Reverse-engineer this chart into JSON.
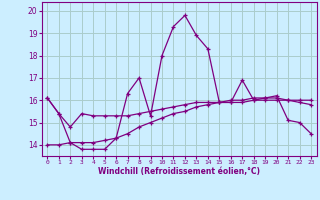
{
  "xlabel": "Windchill (Refroidissement éolien,°C)",
  "x": [
    0,
    1,
    2,
    3,
    4,
    5,
    6,
    7,
    8,
    9,
    10,
    11,
    12,
    13,
    14,
    15,
    16,
    17,
    18,
    19,
    20,
    21,
    22,
    23
  ],
  "line_upper": [
    16.1,
    15.4,
    14.1,
    13.8,
    13.8,
    13.8,
    14.3,
    16.3,
    17.0,
    15.3,
    18.0,
    19.3,
    19.8,
    18.9,
    18.3,
    15.9,
    15.9,
    16.9,
    16.0,
    16.1,
    16.2,
    15.1,
    15.0,
    14.5
  ],
  "line_middle": [
    16.1,
    15.4,
    14.8,
    15.4,
    15.3,
    15.3,
    15.3,
    15.3,
    15.4,
    15.5,
    15.6,
    15.7,
    15.8,
    15.9,
    15.9,
    15.9,
    16.0,
    16.0,
    16.1,
    16.1,
    16.1,
    16.0,
    15.9,
    15.8
  ],
  "line_lower": [
    14.0,
    14.0,
    14.1,
    14.1,
    14.1,
    14.2,
    14.3,
    14.5,
    14.8,
    15.0,
    15.2,
    15.4,
    15.5,
    15.7,
    15.8,
    15.9,
    15.9,
    15.9,
    16.0,
    16.0,
    16.0,
    16.0,
    16.0,
    16.0
  ],
  "line_color": "#800080",
  "bg_color": "#cceeff",
  "grid_color": "#aacccc",
  "ylim": [
    13.5,
    20.4
  ],
  "yticks": [
    14,
    15,
    16,
    17,
    18,
    19,
    20
  ],
  "xlim": [
    -0.5,
    23.5
  ]
}
